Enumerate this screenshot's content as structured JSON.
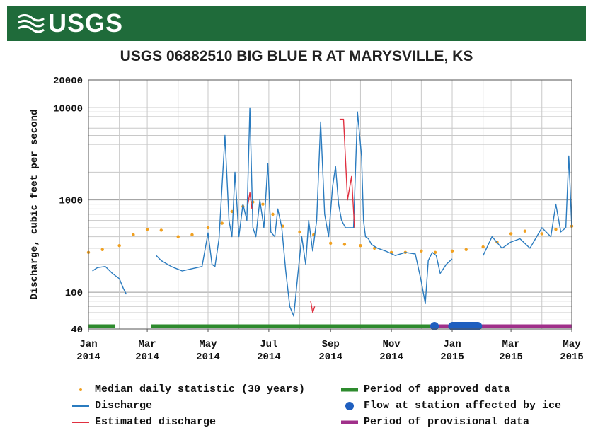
{
  "header": {
    "logo_text": "USGS",
    "logo_icon": "usgs-wave-logo-icon"
  },
  "colors": {
    "banner": "#1f6b3a",
    "median": "#f0a020",
    "discharge": "#2a7bbf",
    "estimated": "#e03040",
    "approved": "#2e8b2e",
    "ice": "#1f5fbf",
    "provisional": "#a0308a"
  },
  "chart_data": {
    "type": "line",
    "title": "USGS 06882510 BIG BLUE R AT MARYSVILLE, KS",
    "ylabel": "Discharge, cubic feet per second",
    "xlabel": "",
    "y_scale": "log",
    "ylim": [
      40,
      20000
    ],
    "xlim": [
      "2014-01-01",
      "2015-05-01"
    ],
    "grid": true,
    "y_ticks": [
      "20000",
      "10000",
      "1000",
      "100",
      "40"
    ],
    "y_tick_values": [
      20000,
      10000,
      1000,
      100,
      40
    ],
    "x_ticks": [
      {
        "date": "2014-01-01",
        "month": "Jan",
        "year": "2014"
      },
      {
        "date": "2014-03-01",
        "month": "Mar",
        "year": "2014"
      },
      {
        "date": "2014-05-01",
        "month": "May",
        "year": "2014"
      },
      {
        "date": "2014-07-01",
        "month": "Jul",
        "year": "2014"
      },
      {
        "date": "2014-09-01",
        "month": "Sep",
        "year": "2014"
      },
      {
        "date": "2014-11-01",
        "month": "Nov",
        "year": "2014"
      },
      {
        "date": "2015-01-01",
        "month": "Jan",
        "year": "2015"
      },
      {
        "date": "2015-03-01",
        "month": "Mar",
        "year": "2015"
      },
      {
        "date": "2015-05-01",
        "month": "May",
        "year": "2015"
      }
    ],
    "series": [
      {
        "name": "Median daily statistic (30 years)",
        "style": "points",
        "x": [
          "2014-01-01",
          "2014-01-15",
          "2014-02-01",
          "2014-02-15",
          "2014-03-01",
          "2014-03-15",
          "2014-04-01",
          "2014-04-15",
          "2014-05-01",
          "2014-05-15",
          "2014-05-25",
          "2014-06-05",
          "2014-06-15",
          "2014-06-25",
          "2014-07-05",
          "2014-07-15",
          "2014-08-01",
          "2014-08-15",
          "2014-09-01",
          "2014-09-15",
          "2014-10-01",
          "2014-10-15",
          "2014-11-01",
          "2014-11-15",
          "2014-12-01",
          "2014-12-15",
          "2015-01-01",
          "2015-01-15",
          "2015-02-01",
          "2015-02-15",
          "2015-03-01",
          "2015-03-15",
          "2015-04-01",
          "2015-04-15",
          "2015-05-01"
        ],
        "y": [
          270,
          290,
          320,
          420,
          480,
          470,
          400,
          420,
          500,
          560,
          750,
          850,
          950,
          900,
          700,
          520,
          450,
          420,
          340,
          330,
          320,
          300,
          270,
          270,
          280,
          270,
          280,
          290,
          310,
          350,
          430,
          460,
          430,
          480,
          520
        ]
      },
      {
        "name": "Discharge",
        "style": "line",
        "segments": [
          {
            "x": [
              "2014-01-05",
              "2014-01-10",
              "2014-01-18",
              "2014-01-25",
              "2014-02-01",
              "2014-02-05",
              "2014-02-08"
            ],
            "y": [
              170,
              185,
              190,
              160,
              140,
              110,
              95
            ]
          },
          {
            "x": [
              "2014-03-10",
              "2014-03-15",
              "2014-03-25",
              "2014-04-05",
              "2014-04-15",
              "2014-04-25",
              "2014-05-01",
              "2014-05-05",
              "2014-05-08",
              "2014-05-12",
              "2014-05-18",
              "2014-05-22",
              "2014-05-25",
              "2014-05-28",
              "2014-06-01",
              "2014-06-05",
              "2014-06-09",
              "2014-06-12",
              "2014-06-15",
              "2014-06-18",
              "2014-06-22",
              "2014-06-26",
              "2014-06-30",
              "2014-07-03",
              "2014-07-07",
              "2014-07-10",
              "2014-07-14",
              "2014-07-18",
              "2014-07-22",
              "2014-07-26",
              "2014-07-30",
              "2014-08-03",
              "2014-08-07",
              "2014-08-10",
              "2014-08-14",
              "2014-08-18",
              "2014-08-22",
              "2014-08-26",
              "2014-08-30",
              "2014-09-03",
              "2014-09-06",
              "2014-09-09",
              "2014-09-12",
              "2014-09-16",
              "2014-09-20",
              "2014-09-24",
              "2014-09-28",
              "2014-10-02",
              "2014-10-04",
              "2014-10-06",
              "2014-10-09",
              "2014-10-12",
              "2014-10-18",
              "2014-10-26",
              "2014-11-05",
              "2014-11-15",
              "2014-11-25",
              "2014-12-01",
              "2014-12-05",
              "2014-12-08",
              "2014-12-12",
              "2014-12-16",
              "2014-12-20",
              "2014-12-26",
              "2015-01-01"
            ],
            "y": [
              250,
              220,
              190,
              170,
              180,
              190,
              440,
              200,
              190,
              380,
              5000,
              600,
              400,
              2000,
              400,
              900,
              600,
              10000,
              500,
              400,
              1000,
              500,
              2500,
              450,
              400,
              800,
              500,
              170,
              70,
              55,
              150,
              400,
              200,
              600,
              280,
              600,
              7000,
              700,
              400,
              1400,
              2300,
              900,
              600,
              500,
              500,
              500,
              9000,
              3000,
              600,
              400,
              380,
              330,
              300,
              280,
              250,
              270,
              260,
              130,
              75,
              220,
              270,
              250,
              160,
              200,
              230
            ]
          },
          {
            "x": [
              "2015-02-01",
              "2015-02-10",
              "2015-02-20",
              "2015-03-01",
              "2015-03-10",
              "2015-03-20",
              "2015-04-01",
              "2015-04-10",
              "2015-04-15",
              "2015-04-20",
              "2015-04-25",
              "2015-04-28",
              "2015-05-01"
            ],
            "y": [
              250,
              400,
              300,
              350,
              380,
              300,
              500,
              400,
              900,
              450,
              500,
              3000,
              500
            ]
          }
        ]
      },
      {
        "name": "Estimated discharge",
        "style": "line",
        "segments": [
          {
            "x": [
              "2014-06-10",
              "2014-06-12",
              "2014-06-14"
            ],
            "y": [
              900,
              1200,
              800
            ]
          },
          {
            "x": [
              "2014-08-12",
              "2014-08-14",
              "2014-08-16"
            ],
            "y": [
              80,
              60,
              70
            ]
          },
          {
            "x": [
              "2014-09-10",
              "2014-09-14",
              "2014-09-18",
              "2014-09-22",
              "2014-09-25"
            ],
            "y": [
              7500,
              7500,
              1000,
              1800,
              500
            ]
          }
        ]
      },
      {
        "name": "Period of approved data",
        "style": "band",
        "ranges": [
          [
            "2014-01-01",
            "2014-01-28"
          ],
          [
            "2014-03-05",
            "2014-12-10"
          ]
        ]
      },
      {
        "name": "Flow at station affected by ice",
        "style": "band",
        "ranges": [
          [
            "2014-12-10",
            "2014-12-13"
          ],
          [
            "2014-12-28",
            "2015-01-31"
          ]
        ]
      },
      {
        "name": "Period of provisional data",
        "style": "band",
        "ranges": [
          [
            "2014-12-10",
            "2015-05-01"
          ]
        ]
      }
    ]
  }
}
